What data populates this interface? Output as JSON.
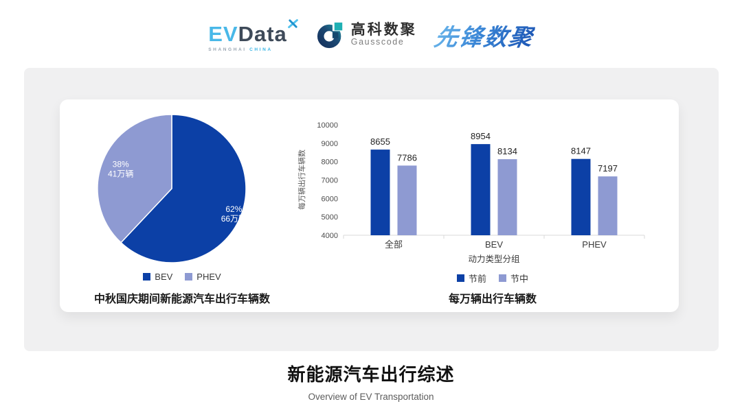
{
  "header": {
    "evdata": {
      "ev": "EV",
      "data": "Data",
      "sub_left": "SHANGHAI",
      "sub_right": "CHINA"
    },
    "gausscode": {
      "cn": "高科数聚",
      "en": "Gausscode"
    },
    "pioneer": {
      "text": "先锋数聚"
    }
  },
  "footer": {
    "title": "新能源汽车出行综述",
    "subtitle": "Overview of EV Transportation"
  },
  "colors": {
    "primary_blue": "#0c40a6",
    "periwinkle": "#8e9ad2",
    "panel_bg": "#f0f0f1",
    "axis_gray": "#d8d8d8"
  },
  "chart_data": [
    {
      "type": "pie",
      "title": "中秋国庆期间新能源汽车出行车辆数",
      "legend_position": "bottom",
      "start_angle": "12-oclock",
      "direction": "clockwise",
      "slices": [
        {
          "label": "BEV",
          "percent": 62,
          "percent_label": "62%",
          "amount_label": "66万辆",
          "color": "#0c40a6"
        },
        {
          "label": "PHEV",
          "percent": 38,
          "percent_label": "38%",
          "amount_label": "41万辆",
          "color": "#8e9ad2"
        }
      ]
    },
    {
      "type": "bar",
      "title": "每万辆出行车辆数",
      "categories": [
        "全部",
        "BEV",
        "PHEV"
      ],
      "series": [
        {
          "name": "节前",
          "color": "#0c40a6",
          "values": [
            8655,
            8954,
            8147
          ]
        },
        {
          "name": "节中",
          "color": "#8e9ad2",
          "values": [
            7786,
            8134,
            7197
          ]
        }
      ],
      "xlabel": "动力类型分组",
      "ylabel": "每万辆出行车辆数",
      "ylim": [
        4000,
        10000
      ],
      "ytick_step": 1000,
      "grid": false,
      "legend_position": "bottom"
    }
  ]
}
